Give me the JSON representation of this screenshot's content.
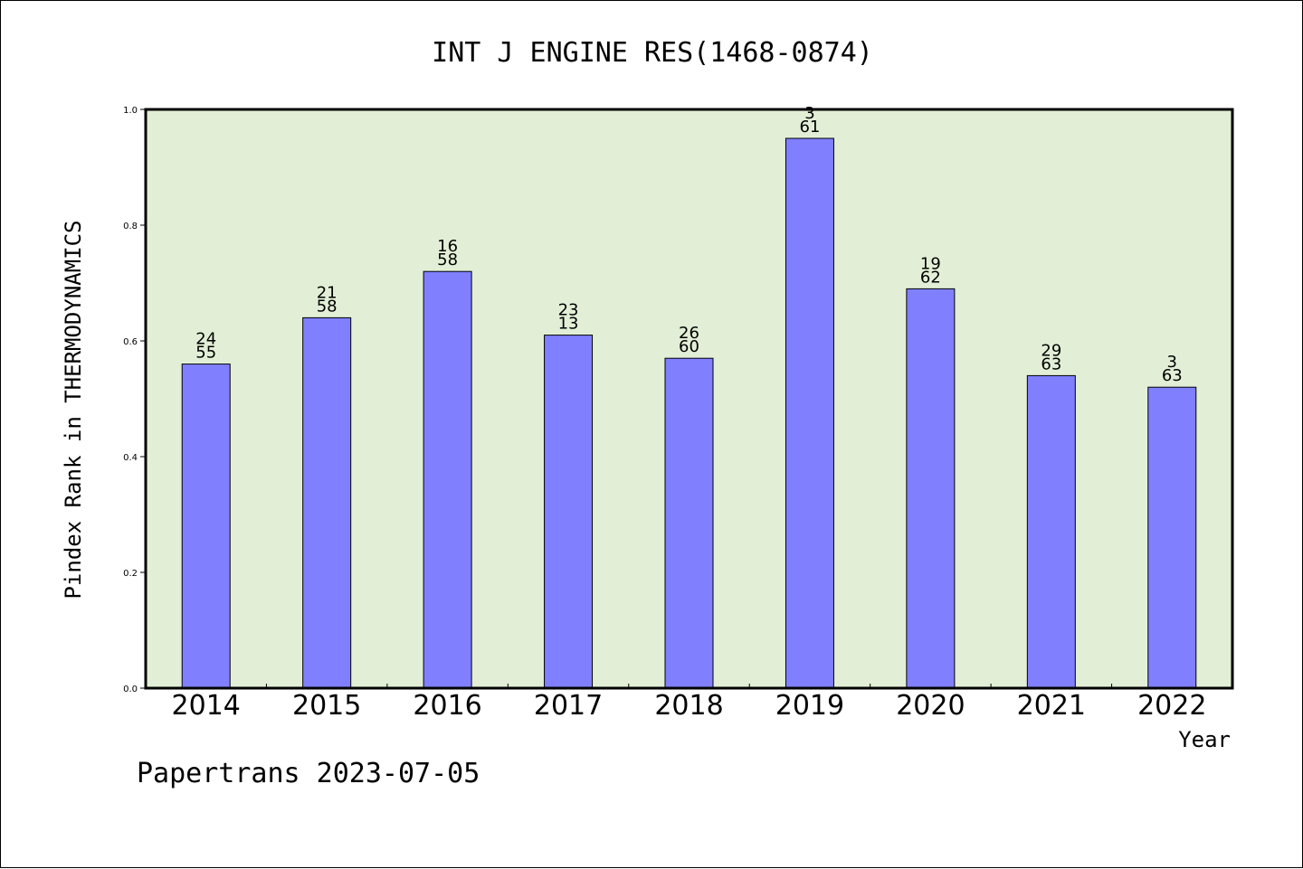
{
  "chart_data": {
    "type": "bar",
    "title": "INT J ENGINE RES(1468-0874)",
    "xlabel": "Year",
    "ylabel": "Pindex Rank in THERMODYNAMICS",
    "categories": [
      "2014",
      "2015",
      "2016",
      "2017",
      "2018",
      "2019",
      "2020",
      "2021",
      "2022"
    ],
    "values": [
      0.56,
      0.64,
      0.72,
      0.61,
      0.57,
      0.95,
      0.69,
      0.54,
      0.52
    ],
    "rank": [
      "24",
      "21",
      "16",
      "23",
      "26",
      "3",
      "19",
      "29",
      "3"
    ],
    "total": [
      "55",
      "58",
      "58",
      "13",
      "60",
      "61",
      "62",
      "63",
      "63"
    ],
    "ylim": [
      0,
      1.0
    ],
    "yticks": [
      "0.0",
      "0.2",
      "0.4",
      "0.6",
      "0.8",
      "1.0"
    ],
    "grid": false,
    "colors": {
      "plot_bg": "#e2efd6",
      "bar": "#8080ff"
    }
  },
  "footer": "Papertrans 2023-07-05"
}
